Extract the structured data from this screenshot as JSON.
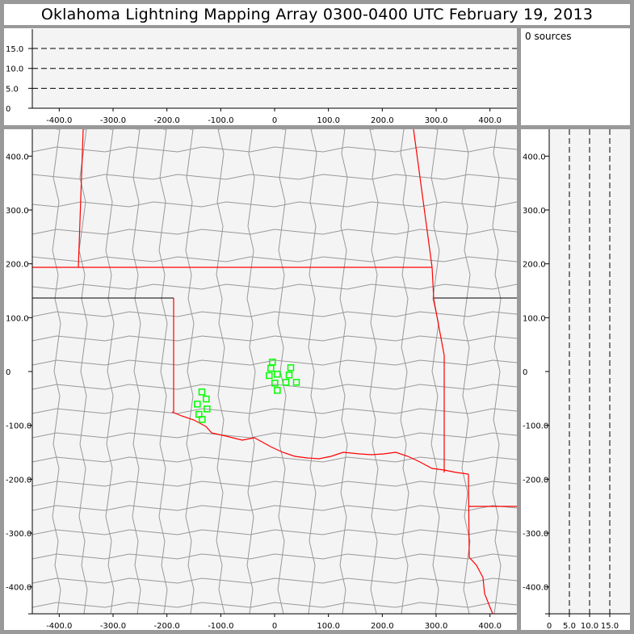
{
  "title": "Oklahoma Lightning Mapping Array   0300-0400 UTC  February 19, 2013",
  "info": {
    "source_count": "0 sources"
  },
  "colors": {
    "plot_background": "#f4f4f4",
    "frame": "#999999",
    "state_border": "#ff0000",
    "county_border": "#999999",
    "station_marker": "#00ff00"
  },
  "chart_data": [
    {
      "type": "line",
      "panel": "altitude-vs-east-west",
      "xlim": [
        -450,
        450
      ],
      "ylim": [
        0,
        20
      ],
      "xticks": [
        "-400.0",
        "-300.0",
        "-200.0",
        "-100.0",
        "0",
        "100.0",
        "200.0",
        "300.0",
        "400.0"
      ],
      "xtick_values": [
        -400,
        -300,
        -200,
        -100,
        0,
        100,
        200,
        300,
        400
      ],
      "yticks": [
        "0",
        "5.0",
        "10.0",
        "15.0"
      ],
      "ytick_values": [
        0,
        5,
        10,
        15
      ],
      "reference_lines_dashed": [
        5,
        10,
        15
      ],
      "series": []
    },
    {
      "type": "scatter",
      "panel": "plan-view-map",
      "xlim": [
        -450,
        450
      ],
      "ylim": [
        -450,
        450
      ],
      "xticks": [
        "-400.0",
        "-300.0",
        "-200.0",
        "-100.0",
        "0",
        "100.0",
        "200.0",
        "300.0",
        "400.0"
      ],
      "xtick_values": [
        -400,
        -300,
        -200,
        -100,
        0,
        100,
        200,
        300,
        400
      ],
      "yticks": [
        "-400.0",
        "-300.0",
        "-200.0",
        "-100.0",
        "0",
        "100.0",
        "200.0",
        "300.0",
        "400.0"
      ],
      "ytick_values": [
        -400,
        -300,
        -200,
        -100,
        0,
        100,
        200,
        300,
        400
      ],
      "stations": [
        [
          -4,
          17.5
        ],
        [
          -7,
          6
        ],
        [
          30,
          7
        ],
        [
          -10,
          -7.5
        ],
        [
          5,
          -5
        ],
        [
          27,
          -6.5
        ],
        [
          0.5,
          -21.5
        ],
        [
          21,
          -20
        ],
        [
          40.5,
          -20
        ],
        [
          5,
          -35
        ],
        [
          -135,
          -38
        ],
        [
          -127,
          -51
        ],
        [
          -143.5,
          -60.5
        ],
        [
          -125.5,
          -69.5
        ],
        [
          -140.5,
          -79.5
        ],
        [
          -134.5,
          -89
        ]
      ],
      "series": []
    },
    {
      "type": "line",
      "panel": "north-south-vs-altitude",
      "xlim": [
        0,
        20
      ],
      "ylim": [
        -450,
        450
      ],
      "xticks": [
        "0",
        "5.0",
        "10.0",
        "15.0"
      ],
      "xtick_values": [
        0,
        5,
        10,
        15
      ],
      "yticks": [
        "-400.0",
        "-300.0",
        "-200.0",
        "-100.0",
        "0",
        "100.0",
        "200.0",
        "300.0",
        "400.0"
      ],
      "ytick_values": [
        -400,
        -300,
        -200,
        -100,
        0,
        100,
        200,
        300,
        400
      ],
      "reference_lines_dashed": [
        5,
        10,
        15
      ],
      "series": []
    }
  ]
}
